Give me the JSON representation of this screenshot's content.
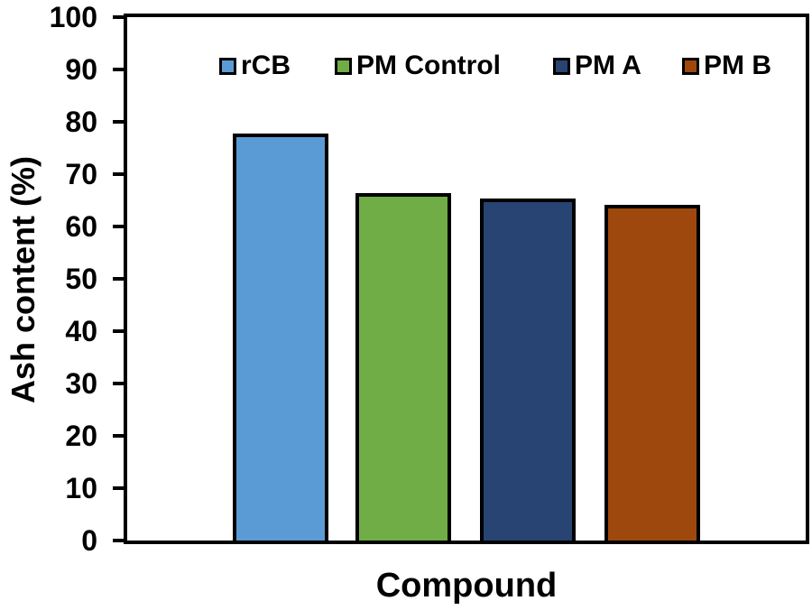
{
  "chart_data": {
    "type": "bar",
    "title": "",
    "xlabel": "Compound",
    "ylabel": "Ash content (%)",
    "ylim": [
      0,
      100
    ],
    "yticks": [
      0,
      10,
      20,
      30,
      40,
      50,
      60,
      70,
      80,
      90,
      100
    ],
    "grid": false,
    "legend_position": "top-inside",
    "categories": [
      "Compound"
    ],
    "series": [
      {
        "name": "rCB",
        "value": 77.8,
        "color": "#5B9BD5"
      },
      {
        "name": "PM Control",
        "value": 66.4,
        "color": "#70AD47"
      },
      {
        "name": "PM A",
        "value": 65.4,
        "color": "#274472"
      },
      {
        "name": "PM B",
        "value": 64.1,
        "color": "#9E480E"
      }
    ],
    "bar_border_color": "#000000",
    "axis_color": "#000000",
    "background": "#FFFFFF"
  }
}
